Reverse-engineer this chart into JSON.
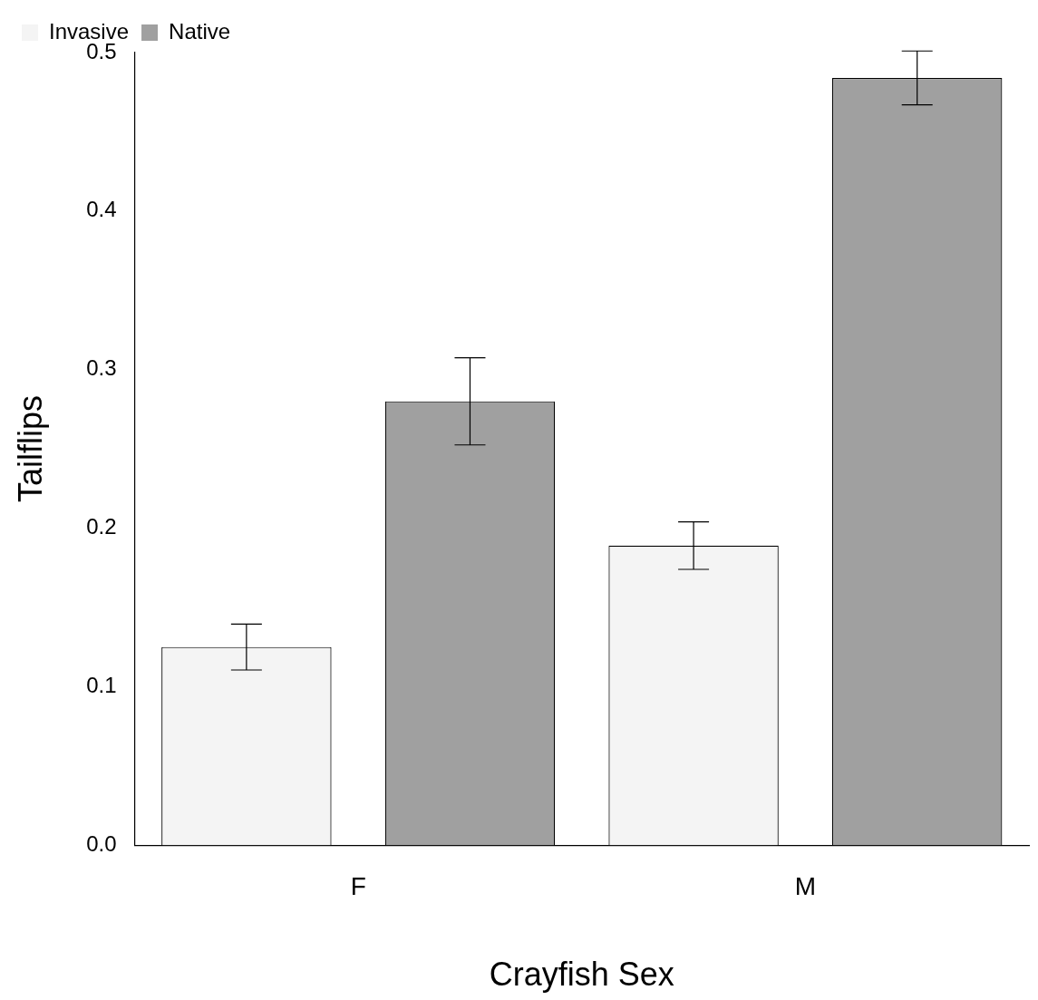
{
  "chart_data": {
    "type": "bar",
    "xlabel": "Crayfish Sex",
    "ylabel": "Tailflips",
    "categories": [
      "F",
      "M"
    ],
    "series": [
      {
        "name": "Invasive",
        "color": "#f4f4f4",
        "values": [
          0.125,
          0.189
        ],
        "errors": [
          0.0145,
          0.015
        ]
      },
      {
        "name": "Native",
        "color": "#a0a0a0",
        "values": [
          0.28,
          0.484
        ],
        "errors": [
          0.0275,
          0.017
        ]
      }
    ],
    "ylim": [
      0,
      0.5
    ],
    "yticks": [
      {
        "value": 0,
        "label": "0.0"
      },
      0.1,
      0.2,
      0.3,
      0.4,
      0.5
    ],
    "grid": false,
    "legend": "top left"
  }
}
